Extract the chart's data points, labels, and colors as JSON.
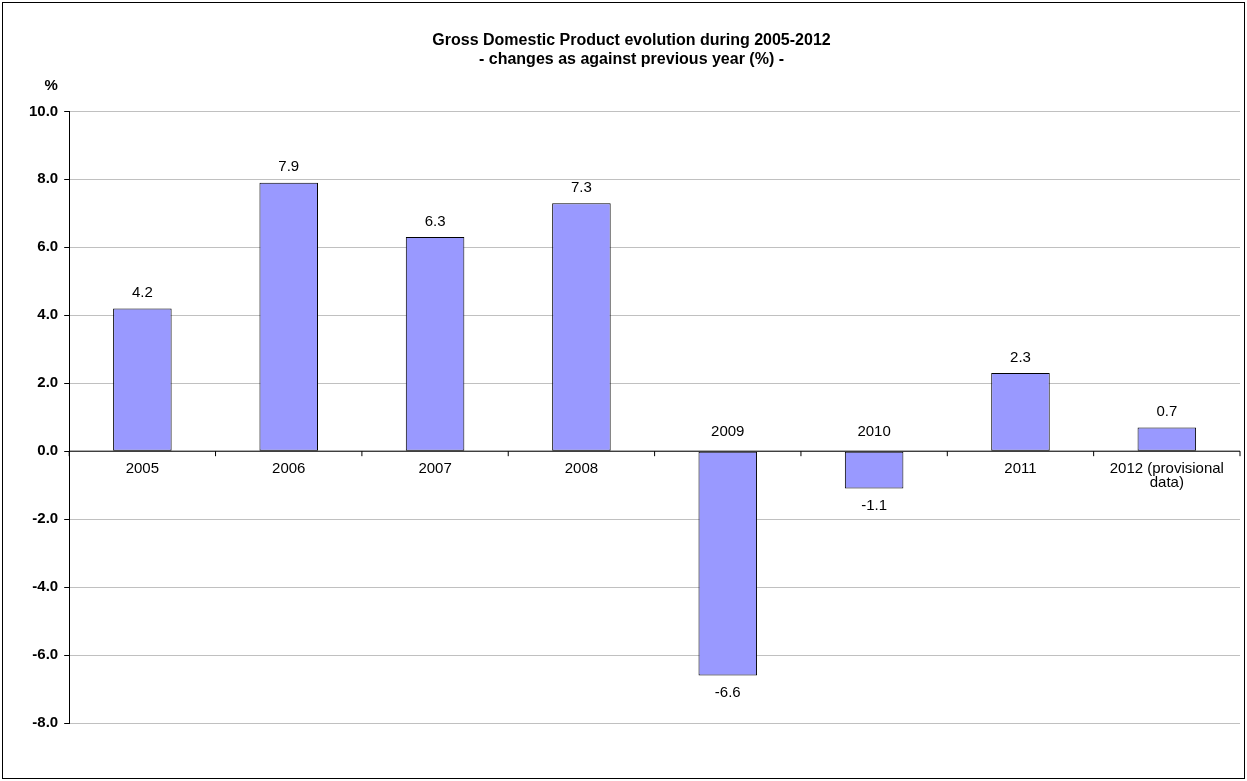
{
  "chart_data": {
    "type": "bar",
    "title": "Gross Domestic Product evolution during 2005-2012",
    "subtitle": "- changes as against previous year (%) -",
    "ylabel": "%",
    "categories": [
      "2005",
      "2006",
      "2007",
      "2008",
      "2009",
      "2010",
      "2011",
      "2012 (provisional data)"
    ],
    "values": [
      4.2,
      7.9,
      6.3,
      7.3,
      -6.6,
      -1.1,
      2.3,
      0.7
    ],
    "color": "#9999ff",
    "ylim": [
      -8,
      10
    ],
    "yticks": [
      {
        "value": -8,
        "label": "-8.0"
      },
      {
        "value": -6,
        "label": "-6.0"
      },
      {
        "value": -4,
        "label": "-4.0"
      },
      {
        "value": -2,
        "label": "-2.0"
      },
      {
        "value": 0,
        "label": "0.0"
      },
      {
        "value": 2,
        "label": "2.0"
      },
      {
        "value": 4,
        "label": "4.0"
      },
      {
        "value": 6,
        "label": "6.0"
      },
      {
        "value": 8,
        "label": "8.0"
      },
      {
        "value": 10,
        "label": "10.0"
      }
    ],
    "grid": "y",
    "data_labels": true,
    "legend": false
  }
}
